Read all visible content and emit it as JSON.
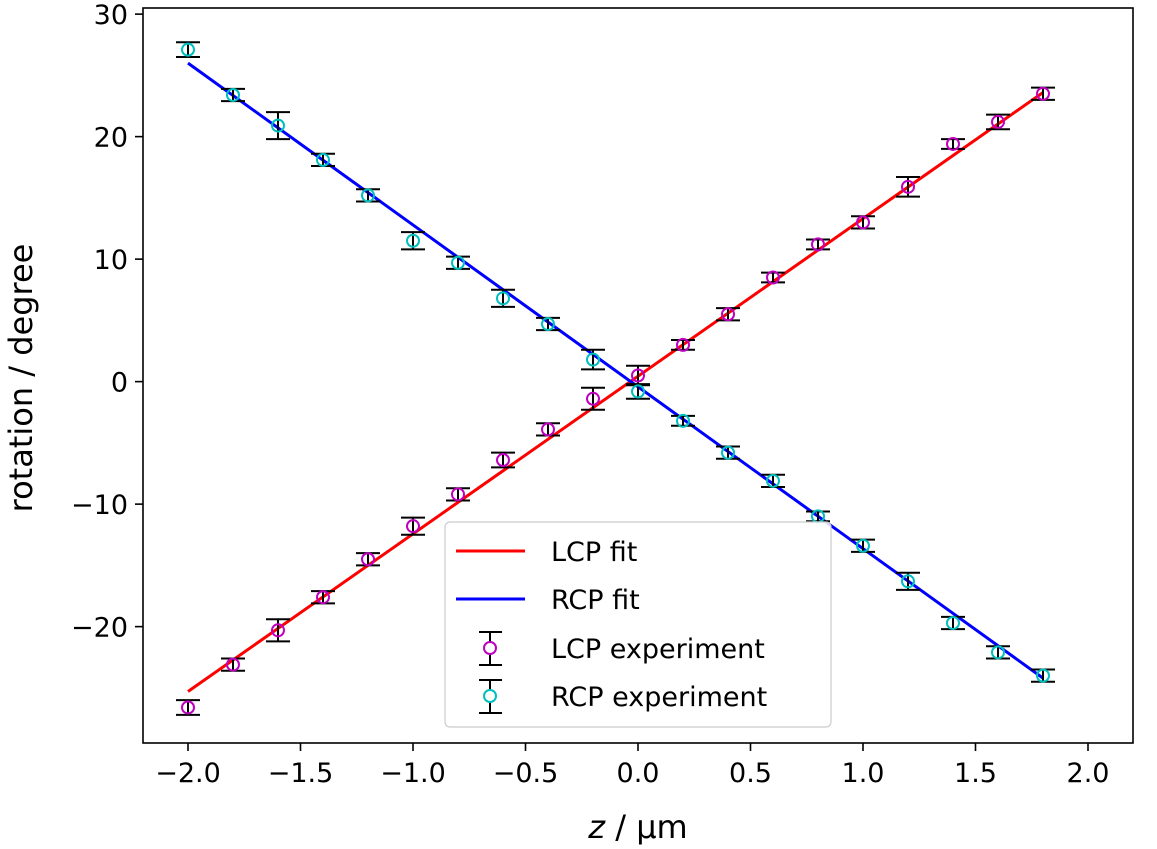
{
  "chart_data": {
    "type": "scatter",
    "xlabel_var": "z",
    "xlabel_unit": " / µm",
    "ylabel": "rotation / degree",
    "xlim": [
      -2.2,
      2.2
    ],
    "ylim": [
      -29.5,
      30.5
    ],
    "x_ticks": [
      -2.0,
      -1.5,
      -1.0,
      -0.5,
      0.0,
      0.5,
      1.0,
      1.5,
      2.0
    ],
    "x_tick_labels": [
      "−2.0",
      "−1.5",
      "−1.0",
      "−0.5",
      "0.0",
      "0.5",
      "1.0",
      "1.5",
      "2.0"
    ],
    "y_ticks": [
      -20,
      -10,
      0,
      10,
      20,
      30
    ],
    "y_tick_labels": [
      "−20",
      "−10",
      "0",
      "10",
      "20",
      "30"
    ],
    "grid": false,
    "legend_position": "bottom-center",
    "fits": [
      {
        "name": "LCP fit",
        "color": "#ff0000",
        "x": [
          -2.0,
          1.8
        ],
        "y": [
          -25.3,
          23.6
        ]
      },
      {
        "name": "RCP fit",
        "color": "#0000ff",
        "x": [
          -2.0,
          1.8
        ],
        "y": [
          26.0,
          -24.2
        ]
      }
    ],
    "experiments": [
      {
        "name": "LCP experiment",
        "color": "#bf00bf",
        "x": [
          -2.0,
          -1.8,
          -1.6,
          -1.4,
          -1.2,
          -1.0,
          -0.8,
          -0.6,
          -0.4,
          -0.2,
          0.0,
          0.2,
          0.4,
          0.6,
          0.8,
          1.0,
          1.2,
          1.4,
          1.6,
          1.8
        ],
        "y": [
          -26.6,
          -23.1,
          -20.3,
          -17.6,
          -14.5,
          -11.8,
          -9.2,
          -6.4,
          -3.9,
          -1.4,
          0.5,
          3.0,
          5.5,
          8.5,
          11.2,
          13.0,
          15.9,
          19.4,
          21.2,
          23.5
        ],
        "err": [
          0.6,
          0.5,
          0.9,
          0.5,
          0.5,
          0.7,
          0.5,
          0.6,
          0.5,
          0.9,
          0.8,
          0.4,
          0.5,
          0.4,
          0.4,
          0.5,
          0.8,
          0.4,
          0.6,
          0.5
        ]
      },
      {
        "name": "RCP experiment",
        "color": "#00bfbf",
        "x": [
          -2.0,
          -1.8,
          -1.6,
          -1.4,
          -1.2,
          -1.0,
          -0.8,
          -0.6,
          -0.4,
          -0.2,
          0.0,
          0.2,
          0.4,
          0.6,
          0.8,
          1.0,
          1.2,
          1.4,
          1.6,
          1.8
        ],
        "y": [
          27.1,
          23.4,
          20.9,
          18.1,
          15.2,
          11.5,
          9.7,
          6.8,
          4.7,
          1.8,
          -0.8,
          -3.2,
          -5.8,
          -8.1,
          -11.0,
          -13.4,
          -16.3,
          -19.7,
          -22.1,
          -24.0
        ],
        "err": [
          0.6,
          0.5,
          1.1,
          0.5,
          0.5,
          0.7,
          0.5,
          0.7,
          0.5,
          0.8,
          0.6,
          0.4,
          0.5,
          0.5,
          0.4,
          0.5,
          0.7,
          0.5,
          0.5,
          0.5
        ]
      }
    ]
  }
}
